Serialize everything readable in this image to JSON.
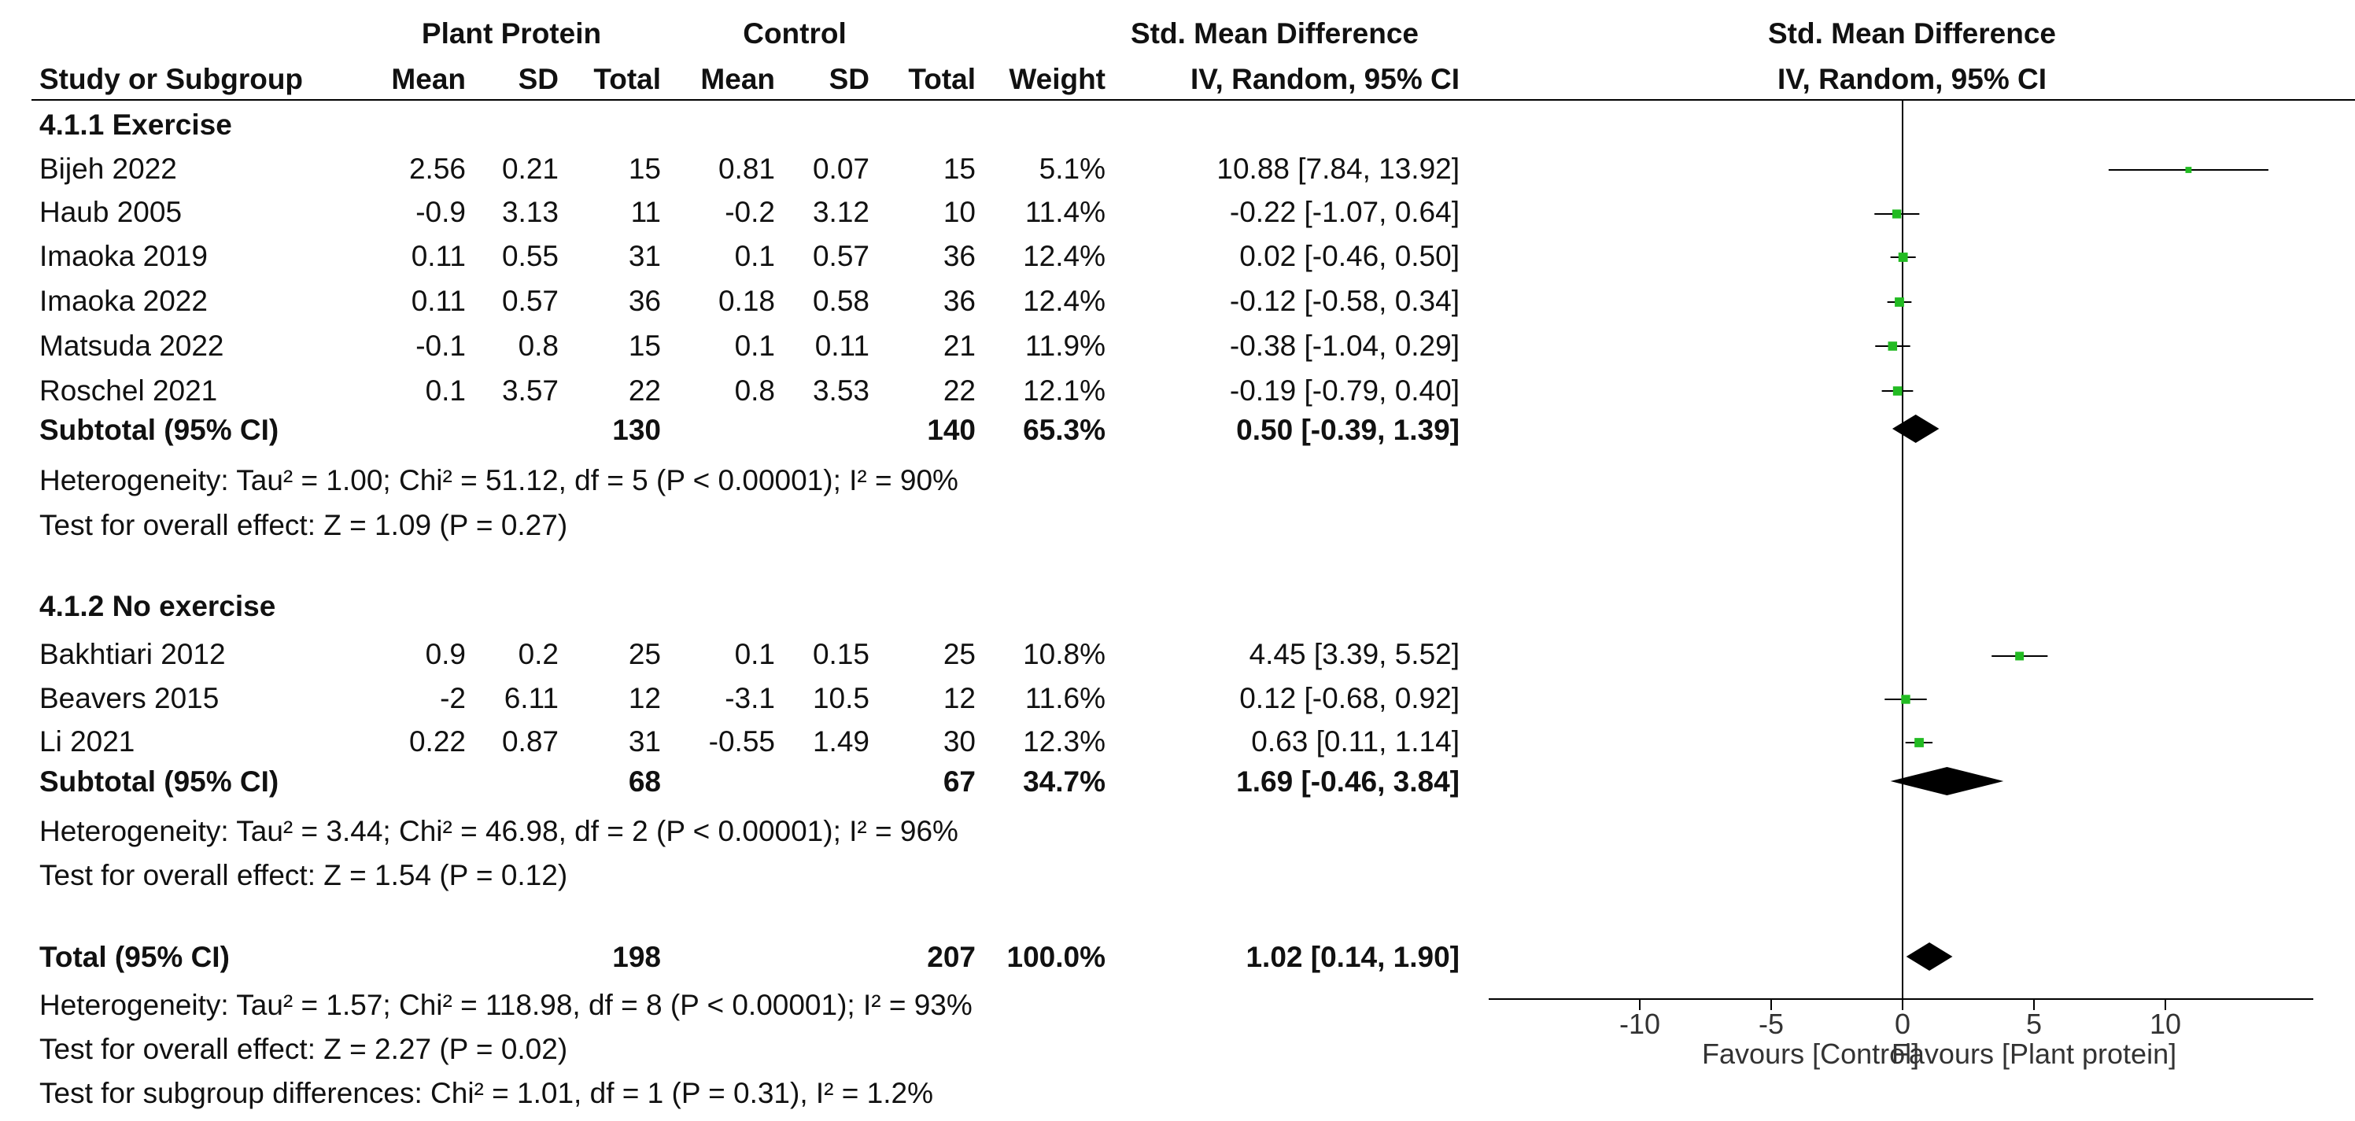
{
  "header": {
    "group1": "Plant Protein",
    "group2": "Control",
    "effect": "Std. Mean Difference",
    "effect_method": "IV, Random, 95% CI",
    "plot_title": "Std. Mean Difference",
    "plot_method": "IV, Random, 95% CI",
    "col_study": "Study or Subgroup",
    "col_mean1": "Mean",
    "col_sd1": "SD",
    "col_total1": "Total",
    "col_mean2": "Mean",
    "col_sd2": "SD",
    "col_total2": "Total",
    "col_weight": "Weight"
  },
  "subgroups": [
    {
      "title": "4.1.1 Exercise",
      "studies": [
        {
          "name": "Bijeh 2022",
          "m1": "2.56",
          "sd1": "0.21",
          "n1": "15",
          "m2": "0.81",
          "sd2": "0.07",
          "n2": "15",
          "w": "5.1%",
          "ci": "10.88 [7.84, 13.92]"
        },
        {
          "name": "Haub 2005",
          "m1": "-0.9",
          "sd1": "3.13",
          "n1": "11",
          "m2": "-0.2",
          "sd2": "3.12",
          "n2": "10",
          "w": "11.4%",
          "ci": "-0.22 [-1.07, 0.64]"
        },
        {
          "name": "Imaoka 2019",
          "m1": "0.11",
          "sd1": "0.55",
          "n1": "31",
          "m2": "0.1",
          "sd2": "0.57",
          "n2": "36",
          "w": "12.4%",
          "ci": "0.02 [-0.46, 0.50]"
        },
        {
          "name": "Imaoka 2022",
          "m1": "0.11",
          "sd1": "0.57",
          "n1": "36",
          "m2": "0.18",
          "sd2": "0.58",
          "n2": "36",
          "w": "12.4%",
          "ci": "-0.12 [-0.58, 0.34]"
        },
        {
          "name": "Matsuda 2022",
          "m1": "-0.1",
          "sd1": "0.8",
          "n1": "15",
          "m2": "0.1",
          "sd2": "0.11",
          "n2": "21",
          "w": "11.9%",
          "ci": "-0.38 [-1.04, 0.29]"
        },
        {
          "name": "Roschel 2021",
          "m1": "0.1",
          "sd1": "3.57",
          "n1": "22",
          "m2": "0.8",
          "sd2": "3.53",
          "n2": "22",
          "w": "12.1%",
          "ci": "-0.19 [-0.79, 0.40]"
        }
      ],
      "subtotal": {
        "label": "Subtotal (95% CI)",
        "n1": "130",
        "n2": "140",
        "w": "65.3%",
        "ci": "0.50 [-0.39, 1.39]"
      },
      "heterogeneity": "Heterogeneity: Tau² = 1.00; Chi² = 51.12, df = 5 (P < 0.00001); I² = 90%",
      "overall": "Test for overall effect: Z = 1.09 (P = 0.27)"
    },
    {
      "title": "4.1.2 No exercise",
      "studies": [
        {
          "name": "Bakhtiari 2012",
          "m1": "0.9",
          "sd1": "0.2",
          "n1": "25",
          "m2": "0.1",
          "sd2": "0.15",
          "n2": "25",
          "w": "10.8%",
          "ci": "4.45 [3.39, 5.52]"
        },
        {
          "name": "Beavers 2015",
          "m1": "-2",
          "sd1": "6.11",
          "n1": "12",
          "m2": "-3.1",
          "sd2": "10.5",
          "n2": "12",
          "w": "11.6%",
          "ci": "0.12 [-0.68, 0.92]"
        },
        {
          "name": "Li 2021",
          "m1": "0.22",
          "sd1": "0.87",
          "n1": "31",
          "m2": "-0.55",
          "sd2": "1.49",
          "n2": "30",
          "w": "12.3%",
          "ci": "0.63 [0.11, 1.14]"
        }
      ],
      "subtotal": {
        "label": "Subtotal (95% CI)",
        "n1": "68",
        "n2": "67",
        "w": "34.7%",
        "ci": "1.69 [-0.46, 3.84]"
      },
      "heterogeneity": "Heterogeneity: Tau² = 3.44; Chi² = 46.98, df = 2 (P < 0.00001); I² = 96%",
      "overall": "Test for overall effect: Z = 1.54 (P = 0.12)"
    }
  ],
  "total": {
    "label": "Total (95% CI)",
    "n1": "198",
    "n2": "207",
    "w": "100.0%",
    "ci": "1.02 [0.14, 1.90]"
  },
  "footer": {
    "heterogeneity": "Heterogeneity: Tau² = 1.57; Chi² = 118.98, df = 8 (P < 0.00001); I² = 93%",
    "overall": "Test for overall effect: Z = 2.27 (P = 0.02)",
    "subgroup_diff": "Test for subgroup differences: Chi² = 1.01, df = 1 (P = 0.31), I² = 1.2%"
  },
  "chart_data": {
    "type": "forest",
    "title": "Std. Mean Difference",
    "subtitle": "IV, Random, 95% CI",
    "xlim": [
      -15,
      15
    ],
    "ticks": [
      -10,
      -5,
      0,
      5,
      10
    ],
    "tick_labels": [
      "-10",
      "-5",
      "0",
      "5",
      "10"
    ],
    "favours_left": "Favours [Control]",
    "favours_right": "Favours [Plant protein]",
    "colors": {
      "study": "#22bb22",
      "diamond": "#000000",
      "axis": "#000000"
    },
    "studies": [
      {
        "name": "Bijeh 2022",
        "est": 10.88,
        "lo": 7.84,
        "hi": 13.92,
        "weight": 5.1
      },
      {
        "name": "Haub 2005",
        "est": -0.22,
        "lo": -1.07,
        "hi": 0.64,
        "weight": 11.4
      },
      {
        "name": "Imaoka 2019",
        "est": 0.02,
        "lo": -0.46,
        "hi": 0.5,
        "weight": 12.4
      },
      {
        "name": "Imaoka 2022",
        "est": -0.12,
        "lo": -0.58,
        "hi": 0.34,
        "weight": 12.4
      },
      {
        "name": "Matsuda 2022",
        "est": -0.38,
        "lo": -1.04,
        "hi": 0.29,
        "weight": 11.9
      },
      {
        "name": "Roschel 2021",
        "est": -0.19,
        "lo": -0.79,
        "hi": 0.4,
        "weight": 12.1
      },
      {
        "name": "Bakhtiari 2012",
        "est": 4.45,
        "lo": 3.39,
        "hi": 5.52,
        "weight": 10.8
      },
      {
        "name": "Beavers 2015",
        "est": 0.12,
        "lo": -0.68,
        "hi": 0.92,
        "weight": 11.6
      },
      {
        "name": "Li 2021",
        "est": 0.63,
        "lo": 0.11,
        "hi": 1.14,
        "weight": 12.3
      }
    ],
    "summaries": [
      {
        "name": "Subtotal 4.1.1 Exercise",
        "est": 0.5,
        "lo": -0.39,
        "hi": 1.39
      },
      {
        "name": "Subtotal 4.1.2 No exercise",
        "est": 1.69,
        "lo": -0.46,
        "hi": 3.84
      },
      {
        "name": "Total",
        "est": 1.02,
        "lo": 0.14,
        "hi": 1.9
      }
    ]
  }
}
